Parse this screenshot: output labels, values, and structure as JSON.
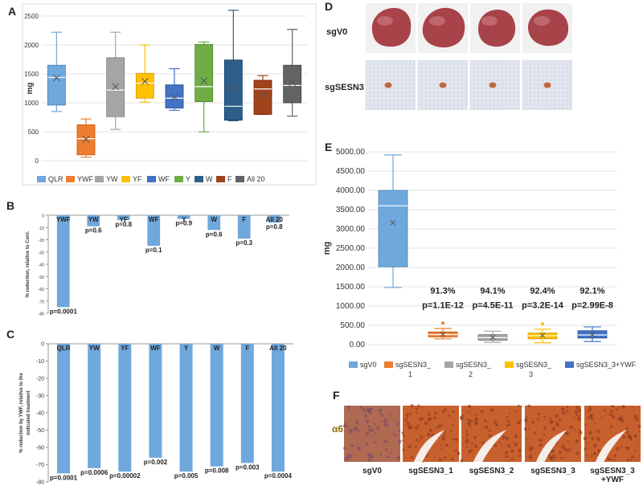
{
  "panels": {
    "A": "A",
    "B": "B",
    "C": "C",
    "D": "D",
    "E": "E",
    "F": "F"
  },
  "chart_data": [
    {
      "id": "A",
      "type": "box",
      "ylabel": "mg",
      "ylim": [
        0,
        2500
      ],
      "yticks": [
        0,
        500,
        1000,
        1500,
        2000,
        2500
      ],
      "grid": true,
      "legend": "bottom",
      "categories": [
        "QLR",
        "YWF",
        "YW",
        "YF",
        "WF",
        "Y",
        "W",
        "F",
        "All 20"
      ],
      "colors": [
        "#6fa8dc",
        "#ed7d31",
        "#a5a5a5",
        "#ffc000",
        "#4472c4",
        "#70ad47",
        "#2e5f8a",
        "#a0441c",
        "#636363"
      ],
      "boxes": [
        {
          "min": 850,
          "q1": 960,
          "median": 1440,
          "q3": 1650,
          "max": 2220,
          "mean": 1430
        },
        {
          "min": 60,
          "q1": 100,
          "median": 380,
          "q3": 620,
          "max": 720,
          "mean": 370
        },
        {
          "min": 540,
          "q1": 760,
          "median": 1220,
          "q3": 1780,
          "max": 2220,
          "mean": 1280
        },
        {
          "min": 1010,
          "q1": 1080,
          "median": 1340,
          "q3": 1510,
          "max": 2000,
          "mean": 1370
        },
        {
          "min": 870,
          "q1": 910,
          "median": 1080,
          "q3": 1310,
          "max": 1590,
          "mean": 1100
        },
        {
          "min": 500,
          "q1": 1020,
          "median": 1280,
          "q3": 2010,
          "max": 2050,
          "mean": 1380
        },
        {
          "min": 690,
          "q1": 700,
          "median": 940,
          "q3": 1740,
          "max": 2600,
          "mean": 1250
        },
        {
          "min": 800,
          "q1": 800,
          "median": 1240,
          "q3": 1390,
          "max": 1470,
          "mean": 1140
        },
        {
          "min": 770,
          "q1": 1000,
          "median": 1300,
          "q3": 1650,
          "max": 2270,
          "mean": 1350
        }
      ]
    },
    {
      "id": "B",
      "type": "bar",
      "ylabel": "% reduction, relative to Cont.",
      "ylim": [
        -80,
        0
      ],
      "yticks": [
        -80,
        -70,
        -60,
        -50,
        -40,
        -30,
        -20,
        -10,
        0
      ],
      "categories": [
        "YWF",
        "YW",
        "YF",
        "WF",
        "Y",
        "W",
        "F",
        "All 20"
      ],
      "values": [
        -75,
        -9,
        -4,
        -25,
        -3,
        -12,
        -19,
        -6
      ],
      "pvalues": [
        "p=0.0001",
        "p=0.6",
        "p=0.8",
        "p=0.1",
        "p=0.9",
        "p=0.6",
        "p=0.3",
        "p=0.8"
      ],
      "color": "#6fa8dc"
    },
    {
      "id": "C",
      "type": "bar",
      "ylabel": "% reduction by YWF, relative to the indicated treatment",
      "ylim": [
        -80,
        0
      ],
      "yticks": [
        -80,
        -70,
        -60,
        -50,
        -40,
        -30,
        -20,
        -10,
        0
      ],
      "categories": [
        "QLR",
        "YW",
        "YF",
        "WF",
        "Y",
        "W",
        "F",
        "All 20"
      ],
      "values": [
        -75,
        -72,
        -74,
        -66,
        -74,
        -71,
        -69,
        -74
      ],
      "pvalues": [
        "p=0.0001",
        "p=0.0006",
        "p=0.00002",
        "p=0.002",
        "p=0.005",
        "p=0.008",
        "p=0.003",
        "p=0.0004"
      ],
      "color": "#6fa8dc"
    },
    {
      "id": "E",
      "type": "box",
      "ylabel": "mg",
      "ylim": [
        0,
        5000
      ],
      "yticks": [
        "0.00",
        "500.00",
        "1000.00",
        "1500.00",
        "2000.00",
        "2500.00",
        "3000.00",
        "3500.00",
        "4000.00",
        "4500.00",
        "5000.00"
      ],
      "grid": true,
      "legend": "bottom",
      "categories": [
        "sgV0",
        "sgSESN3_\n1",
        "sgSESN3_\n2",
        "sgSESN3_\n3",
        "sgSESN3_3+YWF"
      ],
      "colors": [
        "#6fa8dc",
        "#ed7d31",
        "#a5a5a5",
        "#ffc000",
        "#4472c4"
      ],
      "boxes": [
        {
          "min": 1480,
          "q1": 2020,
          "median": 3600,
          "q3": 4000,
          "max": 4920,
          "mean": 3160
        },
        {
          "min": 150,
          "q1": 200,
          "median": 260,
          "q3": 330,
          "max": 420,
          "mean": 270
        },
        {
          "min": 60,
          "q1": 110,
          "median": 180,
          "q3": 260,
          "max": 350,
          "mean": 190
        },
        {
          "min": 50,
          "q1": 150,
          "median": 230,
          "q3": 300,
          "max": 400,
          "mean": 240
        },
        {
          "min": 80,
          "q1": 170,
          "median": 250,
          "q3": 360,
          "max": 460,
          "mean": 260
        }
      ],
      "outliers": [
        {
          "series": 1,
          "value": 560
        },
        {
          "series": 3,
          "value": 540
        }
      ],
      "annotations": [
        {
          "series": 1,
          "pct": "91.3%",
          "p": "p=1.1E-12"
        },
        {
          "series": 2,
          "pct": "94.1%",
          "p": "p=4.5E-11"
        },
        {
          "series": 3,
          "pct": "92.4%",
          "p": "p=3.2E-14"
        },
        {
          "series": 4,
          "pct": "92.1%",
          "p": "p=2.99E-8"
        }
      ]
    }
  ],
  "panel_d": {
    "row_labels": [
      "sgV0",
      "sgSESN3"
    ],
    "organ_color": "#a8434a",
    "tumor_color": "#c06a3a"
  },
  "panel_f": {
    "marker_label": "α6",
    "labels": [
      "sgV0",
      "sgSESN3_1",
      "sgSESN3_2",
      "sgSESN3_3",
      "sgSESN3_3\n+YWF"
    ]
  }
}
